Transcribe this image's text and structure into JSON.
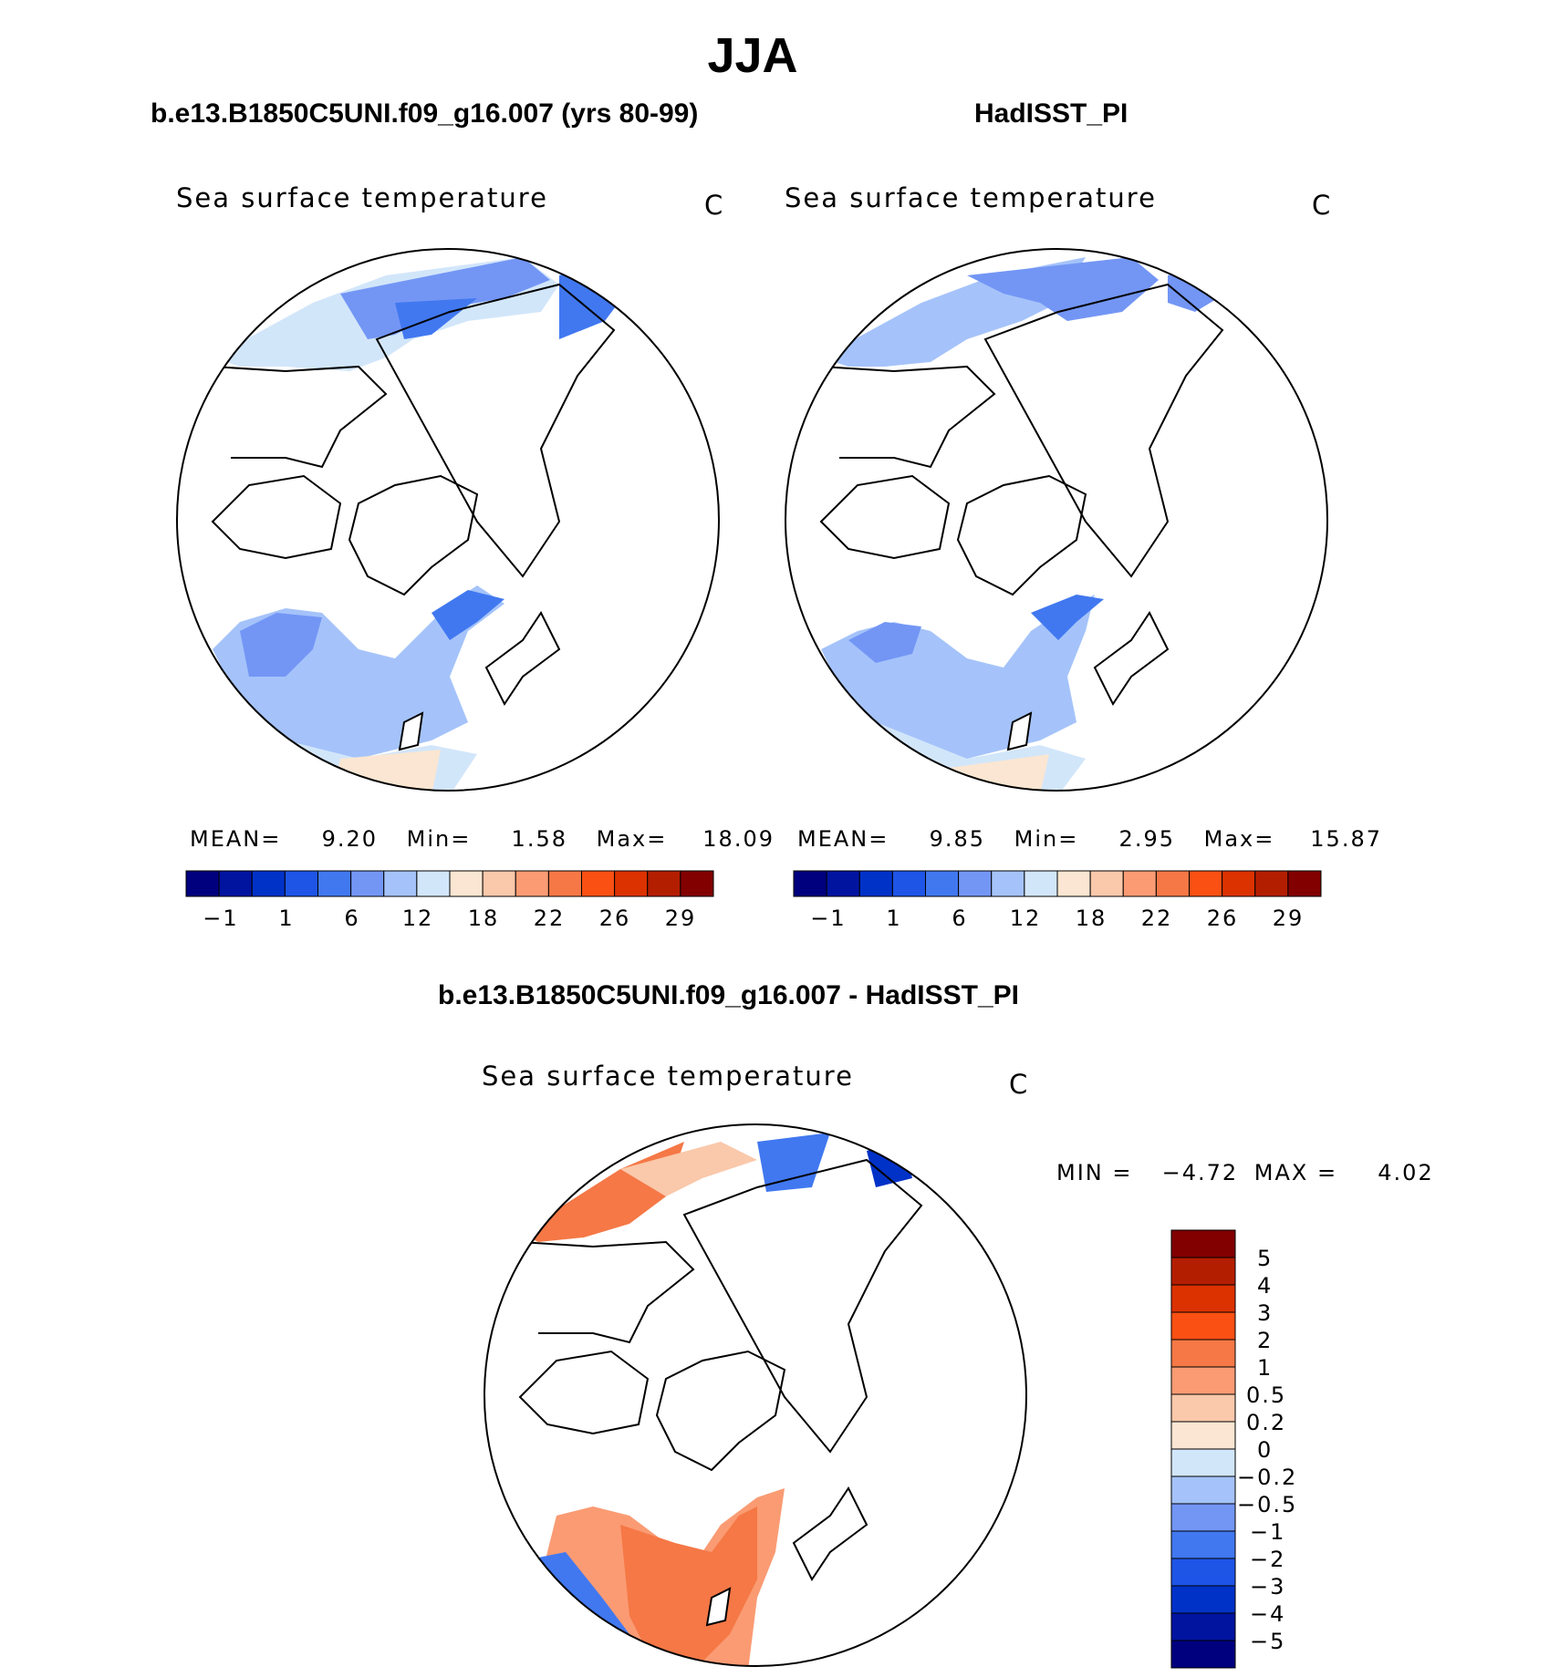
{
  "title": "JJA",
  "panels": [
    {
      "case_title": "b.e13.B1850C5UNI.f09_g16.007 (yrs 80-99)",
      "variable": "Sea surface temperature",
      "units": "C",
      "stats": {
        "mean_label": "MEAN=",
        "mean": "9.20",
        "min_label": "Min=",
        "min": "1.58",
        "max_label": "Max=",
        "max": "18.09"
      }
    },
    {
      "case_title": "HadISST_PI",
      "variable": "Sea surface temperature",
      "units": "C",
      "stats": {
        "mean_label": "MEAN=",
        "mean": "9.85",
        "min_label": "Min=",
        "min": "2.95",
        "max_label": "Max=",
        "max": "15.87"
      }
    }
  ],
  "abs_colorbar": {
    "colors": [
      "#00007f",
      "#0014a0",
      "#0032c8",
      "#1e55e6",
      "#4178f0",
      "#7396f5",
      "#a5c3fa",
      "#d2e6fa",
      "#fae6d2",
      "#fac8aa",
      "#fa9b73",
      "#f57846",
      "#fa5014",
      "#dc3200",
      "#b41e00",
      "#820000"
    ],
    "tick_labels": [
      "−1",
      "1",
      "6",
      "12",
      "18",
      "22",
      "26",
      "29"
    ]
  },
  "diff_panel": {
    "case_title": "b.e13.B1850C5UNI.f09_g16.007 - HadISST_PI",
    "variable": "Sea surface temperature",
    "units": "C",
    "min_label": "MIN =",
    "min": "−4.72",
    "max_label": "MAX =",
    "max": "4.02",
    "colorbar": {
      "colors_top_to_bottom": [
        "#820000",
        "#b41e00",
        "#dc3200",
        "#fa5014",
        "#f57846",
        "#fa9b73",
        "#fac8aa",
        "#fae6d2",
        "#d2e6fa",
        "#a5c3fa",
        "#7396f5",
        "#4178f0",
        "#1e55e6",
        "#0032c8",
        "#0014a0",
        "#00007f"
      ],
      "tick_labels": [
        "5",
        "4",
        "3",
        "2",
        "1",
        "0.5",
        "0.2",
        "0",
        "−0.2",
        "−0.5",
        "−1",
        "−2",
        "−3",
        "−4",
        "−5"
      ]
    }
  }
}
